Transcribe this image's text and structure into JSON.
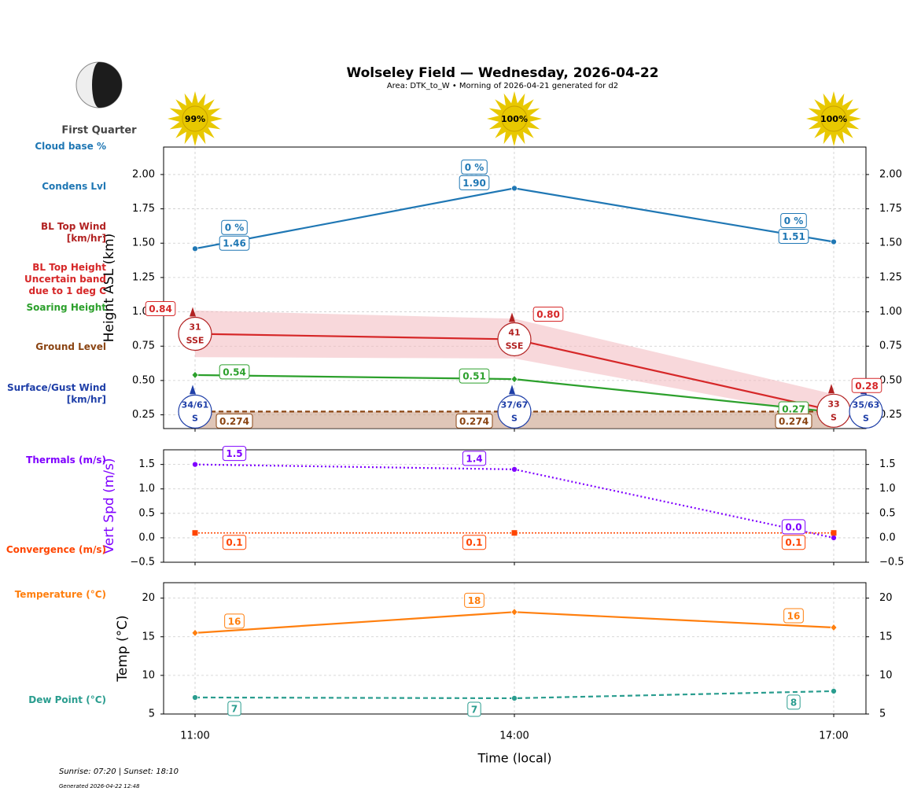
{
  "title": "Wolseley Field — Wednesday, 2026-04-22",
  "subtitle": "Area: DTK_to_W • Morning of 2026-04-21 generated for d2",
  "moon_phase": "First Quarter",
  "sun": {
    "values": [
      99,
      100,
      100
    ],
    "value_labels": [
      "99%",
      "100%",
      "100%"
    ],
    "color": "#e8c800"
  },
  "footer": {
    "sun_times": "Sunrise: 07:20 | Sunset: 18:10",
    "generated": "Generated 2026-04-22 12:48"
  },
  "chart_data": [
    {
      "type": "line",
      "ylabel": "Height ASL (km)",
      "ylim": [
        0.15,
        2.2
      ],
      "grid": true,
      "yticks": [
        0.25,
        {
          "value": 0.5,
          "label": "0.50"
        },
        0.75,
        {
          "value": 1,
          "label": "1.00"
        },
        1.25,
        {
          "value": 1.5,
          "label": "1.50"
        },
        1.75,
        {
          "value": 2,
          "label": "2.00"
        }
      ],
      "series": [
        {
          "name": "Cloud base %",
          "style": "labels",
          "color": "#1f77b4",
          "values": [
            0,
            0,
            0
          ],
          "value_labels": [
            "0 %",
            "0 %",
            "0 %"
          ]
        },
        {
          "name": "Condens Lvl",
          "style": "line",
          "color": "#1f77b4",
          "marker": "circle",
          "values": [
            1.46,
            1.9,
            1.51
          ],
          "value_labels": [
            "1.46",
            "1.90",
            "1.51"
          ]
        },
        {
          "name": "BL Top Wind\n[km/hr]",
          "style": "wind",
          "color": "#b22222",
          "values": [
            31,
            41,
            33
          ],
          "directions": [
            "SSE",
            "SSE",
            "S"
          ]
        },
        {
          "name": "BL Top Height\nUncertain band\n due to 1 deg C",
          "style": "line",
          "color": "#d62728",
          "values": [
            0.84,
            0.8,
            0.28
          ],
          "value_labels": [
            "0.84",
            "0.80",
            "0.28"
          ],
          "band_low": [
            0.67,
            0.66,
            0.23
          ],
          "band_high": [
            1.01,
            0.95,
            0.4
          ],
          "band_color": "#f2b8bd"
        },
        {
          "name": "Soaring Height",
          "style": "line",
          "color": "#2ca02c",
          "marker": "diamond",
          "values": [
            0.54,
            0.51,
            0.27
          ]
        },
        {
          "name": "Ground Level",
          "style": "line",
          "color": "#8b4513",
          "linestyle": "dashed",
          "fill": "#c9a089",
          "values": [
            0.274,
            0.274,
            0.274
          ]
        },
        {
          "name": "Surface/Gust Wind\n[km/hr]",
          "style": "wind",
          "color": "#1f3fa8",
          "values": [
            34,
            37,
            35
          ],
          "gusts": [
            61,
            67,
            63
          ],
          "value_labels": [
            "34/61",
            "37/67",
            "35/63"
          ],
          "directions": [
            "S",
            "S",
            "S"
          ]
        }
      ]
    },
    {
      "type": "line",
      "ylabel": "Vert Spd (m/s)",
      "ylabel_color": "#7f00ff",
      "ylim": [
        -0.5,
        1.8
      ],
      "grid": true,
      "yticks": [
        {
          "value": -0.5,
          "label": "−0.5"
        },
        {
          "value": 0,
          "label": "0.0"
        },
        0.5,
        {
          "value": 1,
          "label": "1.0"
        },
        1.5
      ],
      "series": [
        {
          "name": "Thermals (m/s)",
          "style": "line",
          "color": "#7f00ff",
          "marker": "circle",
          "linestyle": "dotted",
          "values": [
            1.5,
            1.4,
            0
          ],
          "value_labels": [
            "1.5",
            "1.4",
            "0.0"
          ]
        },
        {
          "name": "Convergence (m/s)",
          "style": "line",
          "color": "#ff4500",
          "marker": "square",
          "linestyle": "dotted",
          "values": [
            0.1,
            0.1,
            0.1
          ]
        }
      ]
    },
    {
      "type": "line",
      "ylabel": "Temp (°C)",
      "xlabel": "Time (local)",
      "x": [
        "11:00",
        "14:00",
        "17:00"
      ],
      "ylim": [
        5,
        22
      ],
      "grid": true,
      "yticks": [
        5,
        10,
        15,
        20
      ],
      "series": [
        {
          "name": "Temperature (°C)",
          "style": "line",
          "color": "#ff7f0e",
          "marker": "diamond",
          "values": [
            15.5,
            18.2,
            16.2
          ],
          "value_labels": [
            "16",
            "18",
            "16"
          ]
        },
        {
          "name": "Dew Point (°C)",
          "style": "line",
          "color": "#2a9d8f",
          "marker": "circle",
          "linestyle": "dashed",
          "values": [
            7.14,
            7.04,
            7.96
          ],
          "value_labels": [
            "7",
            "7",
            "8"
          ]
        }
      ]
    }
  ]
}
